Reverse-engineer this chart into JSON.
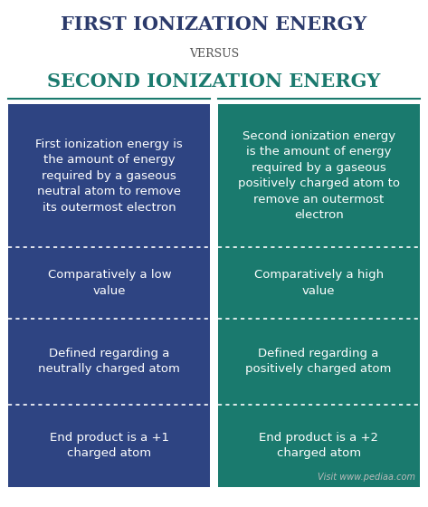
{
  "title1": "FIRST IONIZATION ENERGY",
  "versus": "VERSUS",
  "title2": "SECOND IONIZATION ENERGY",
  "title1_color": "#2b3a6b",
  "versus_color": "#555555",
  "title2_color": "#1a7a6e",
  "left_bg": "#2e4482",
  "right_bg": "#1a7a6e",
  "text_color": "#ffffff",
  "page_bg": "#ffffff",
  "left_cells": [
    "First ionization energy is\nthe amount of energy\nrequired by a gaseous\nneutral atom to remove\nits outermost electron",
    "Comparatively a low\nvalue",
    "Defined regarding a\nneutrally charged atom",
    "End product is a +1\ncharged atom"
  ],
  "right_cells": [
    "Second ionization energy\nis the amount of energy\nrequired by a gaseous\npositively charged atom to\nremove an outermost\nelectron",
    "Comparatively a high\nvalue",
    "Defined regarding a\npositively charged atom",
    "End product is a +2\ncharged atom"
  ],
  "watermark": "Visit www.pediaa.com",
  "watermark_color": "#bbbbbb",
  "divider_color": "#ffffff",
  "header_line_color": "#1a7a6e",
  "font_size_title1": 15,
  "font_size_versus": 9,
  "font_size_title2": 15,
  "font_size_cell": 9.5,
  "font_size_watermark": 7
}
